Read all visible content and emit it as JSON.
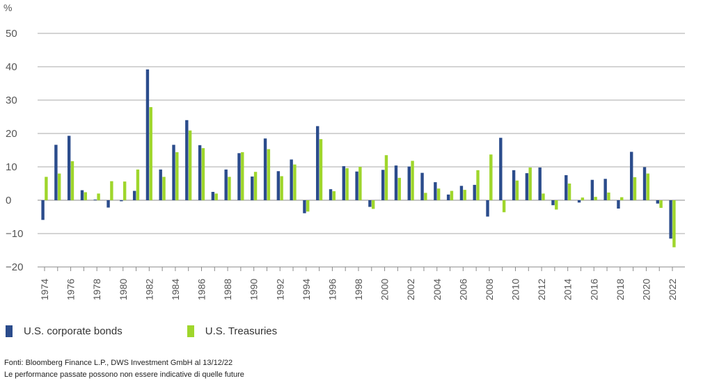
{
  "chart_data": {
    "type": "bar",
    "unit_label": "%",
    "ylim": [
      -20,
      50
    ],
    "yticks": [
      50,
      40,
      30,
      20,
      10,
      0,
      -10,
      -20
    ],
    "ytick_labels": [
      "50",
      "40",
      "30",
      "20",
      "10",
      "0",
      "−10",
      "−20"
    ],
    "grid": true,
    "categories": [
      "1974",
      "1975",
      "1976",
      "1977",
      "1978",
      "1979",
      "1980",
      "1981",
      "1982",
      "1983",
      "1984",
      "1985",
      "1986",
      "1987",
      "1988",
      "1989",
      "1990",
      "1991",
      "1992",
      "1993",
      "1994",
      "1995",
      "1996",
      "1997",
      "1998",
      "1999",
      "2000",
      "2001",
      "2002",
      "2003",
      "2004",
      "2005",
      "2006",
      "2007",
      "2008",
      "2009",
      "2010",
      "2011",
      "2012",
      "2013",
      "2014",
      "2015",
      "2016",
      "2017",
      "2018",
      "2019",
      "2020",
      "2021",
      "2022"
    ],
    "xtick_labels": [
      "1974",
      "1976",
      "1978",
      "1980",
      "1982",
      "1984",
      "1986",
      "1988",
      "1990",
      "1992",
      "1994",
      "1996",
      "1998",
      "2000",
      "2002",
      "2004",
      "2006",
      "2008",
      "2010",
      "2012",
      "2014",
      "2016",
      "2018",
      "2020",
      "2022"
    ],
    "series": [
      {
        "name": "U.S. corporate bonds",
        "color": "#2b4c8c",
        "values": [
          -5.9,
          16.6,
          19.3,
          3.0,
          0.2,
          -2.2,
          -0.3,
          2.8,
          39.2,
          9.2,
          16.6,
          24.0,
          16.5,
          2.5,
          9.2,
          14.1,
          7.1,
          18.5,
          8.7,
          12.2,
          -3.9,
          22.2,
          3.3,
          10.2,
          8.6,
          -2.0,
          9.1,
          10.4,
          10.1,
          8.2,
          5.4,
          1.7,
          4.3,
          4.6,
          -4.9,
          18.7,
          9.0,
          8.1,
          9.8,
          -1.5,
          7.5,
          -0.7,
          6.1,
          6.4,
          -2.5,
          14.5,
          9.9,
          -1.0,
          -11.5
        ]
      },
      {
        "name": "U.S. Treasuries",
        "color": "#9fd62c",
        "values": [
          7.0,
          8.0,
          11.7,
          2.4,
          2.0,
          5.7,
          5.6,
          9.2,
          27.9,
          7.0,
          14.4,
          20.9,
          15.6,
          2.0,
          7.0,
          14.4,
          8.5,
          15.3,
          7.2,
          10.7,
          -3.4,
          18.3,
          2.7,
          9.6,
          10.0,
          -2.6,
          13.5,
          6.7,
          11.8,
          2.2,
          3.5,
          2.8,
          3.1,
          9.0,
          13.7,
          -3.6,
          5.9,
          9.8,
          2.0,
          -2.8,
          5.0,
          0.8,
          1.0,
          2.3,
          0.9,
          6.9,
          8.0,
          -2.3,
          -14.1
        ]
      }
    ]
  },
  "legend": {
    "corp_label": "U.S. corporate bonds",
    "treas_label": "U.S. Treasuries"
  },
  "footer": {
    "source": "Fonti: Bloomberg Finance L.P., DWS Investment GmbH al 13/12/22",
    "disclaimer": "Le performance passate possono non essere indicative di quelle future"
  }
}
